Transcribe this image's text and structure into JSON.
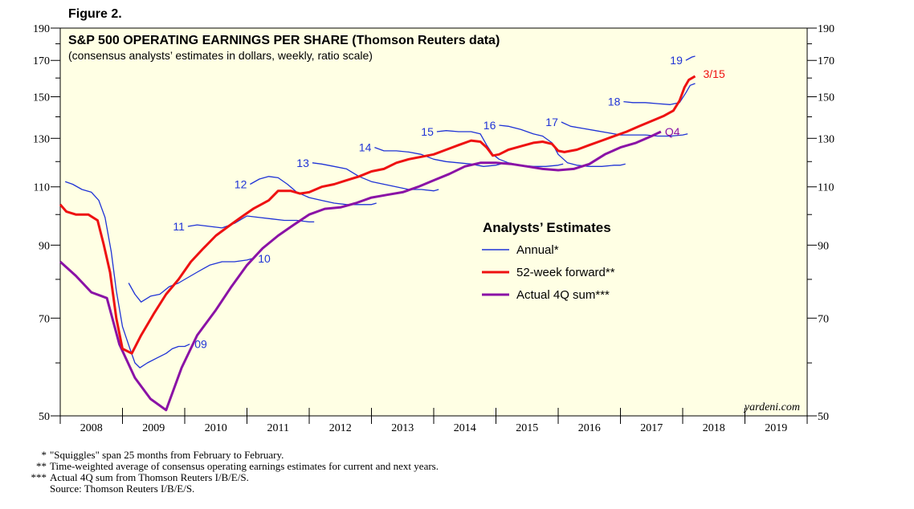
{
  "figure_label": "Figure 2.",
  "watermark": "yardeni.com",
  "colors": {
    "plot_bg": "#ffffe4",
    "annual": "#1f33d6",
    "forward": "#ee1111",
    "actual": "#8a12a6",
    "axis": "#000000"
  },
  "footnotes": [
    {
      "mark": "*",
      "text": "\"Squiggles\" span 25 months from February to February."
    },
    {
      "mark": "**",
      "text": "Time-weighted average of consensus operating earnings estimates for current and next years."
    },
    {
      "mark": "***",
      "text": "Actual 4Q sum from Thomson Reuters I/B/E/S."
    },
    {
      "mark": "",
      "text": "Source: Thomson Reuters I/B/E/S."
    }
  ],
  "chart_data": {
    "type": "line",
    "title": "S&P 500 OPERATING EARNINGS PER SHARE (Thomson Reuters data)",
    "subtitle": "(consensus analysts’ estimates in dollars, weekly, ratio scale)",
    "xlabel": "",
    "ylabel": "",
    "y_scale": "log",
    "ylim": [
      50,
      190
    ],
    "xlim": [
      2008.0,
      2020.0
    ],
    "y_ticks_labeled": [
      50,
      70,
      90,
      110,
      130,
      150,
      170,
      190
    ],
    "x_year_labels": [
      "2008",
      "2009",
      "2010",
      "2011",
      "2012",
      "2013",
      "2014",
      "2015",
      "2016",
      "2017",
      "2018",
      "2019"
    ],
    "legend": {
      "title": "Analysts’ Estimates",
      "position": "middle-right",
      "entries": [
        "Annual*",
        "52-week forward**",
        "Actual 4Q sum***"
      ]
    },
    "annotations": {
      "forward_end_label": "3/15",
      "actual_end_label": "Q4"
    },
    "series": [
      {
        "name": "52-week forward",
        "color_key": "forward",
        "points": [
          [
            2008.0,
            103.5
          ],
          [
            2008.1,
            101
          ],
          [
            2008.25,
            100
          ],
          [
            2008.45,
            100
          ],
          [
            2008.6,
            98
          ],
          [
            2008.7,
            90
          ],
          [
            2008.8,
            82
          ],
          [
            2008.9,
            70
          ],
          [
            2009.0,
            63
          ],
          [
            2009.15,
            62
          ],
          [
            2009.3,
            66
          ],
          [
            2009.5,
            71
          ],
          [
            2009.7,
            76
          ],
          [
            2009.9,
            80
          ],
          [
            2010.1,
            85
          ],
          [
            2010.3,
            89
          ],
          [
            2010.5,
            93
          ],
          [
            2010.7,
            96
          ],
          [
            2010.9,
            99
          ],
          [
            2011.1,
            102
          ],
          [
            2011.35,
            105
          ],
          [
            2011.5,
            108.5
          ],
          [
            2011.7,
            108.5
          ],
          [
            2011.85,
            107.5
          ],
          [
            2012.0,
            108
          ],
          [
            2012.2,
            110
          ],
          [
            2012.4,
            111
          ],
          [
            2012.6,
            112.5
          ],
          [
            2012.8,
            114
          ],
          [
            2013.0,
            116
          ],
          [
            2013.2,
            117
          ],
          [
            2013.4,
            119.5
          ],
          [
            2013.6,
            121
          ],
          [
            2013.8,
            122
          ],
          [
            2014.0,
            123
          ],
          [
            2014.2,
            125
          ],
          [
            2014.4,
            127
          ],
          [
            2014.6,
            129
          ],
          [
            2014.75,
            128.5
          ],
          [
            2014.85,
            126
          ],
          [
            2014.95,
            122.5
          ],
          [
            2015.05,
            123
          ],
          [
            2015.2,
            125
          ],
          [
            2015.4,
            126.5
          ],
          [
            2015.6,
            128
          ],
          [
            2015.75,
            128.5
          ],
          [
            2015.9,
            127.5
          ],
          [
            2016.0,
            124.5
          ],
          [
            2016.1,
            124
          ],
          [
            2016.3,
            125
          ],
          [
            2016.5,
            127
          ],
          [
            2016.7,
            129
          ],
          [
            2016.9,
            131
          ],
          [
            2017.1,
            133
          ],
          [
            2017.3,
            135.5
          ],
          [
            2017.5,
            138
          ],
          [
            2017.7,
            140.5
          ],
          [
            2017.85,
            143
          ],
          [
            2017.95,
            148
          ],
          [
            2018.03,
            155
          ],
          [
            2018.1,
            159
          ],
          [
            2018.2,
            161
          ]
        ]
      },
      {
        "name": "Actual 4Q sum",
        "color_key": "actual",
        "points": [
          [
            2008.0,
            85
          ],
          [
            2008.25,
            81
          ],
          [
            2008.5,
            76.5
          ],
          [
            2008.75,
            75
          ],
          [
            2008.95,
            64
          ],
          [
            2009.2,
            57
          ],
          [
            2009.45,
            53
          ],
          [
            2009.7,
            51
          ],
          [
            2009.95,
            59
          ],
          [
            2010.2,
            66
          ],
          [
            2010.5,
            72
          ],
          [
            2010.75,
            78
          ],
          [
            2011.0,
            84
          ],
          [
            2011.25,
            89
          ],
          [
            2011.5,
            93
          ],
          [
            2011.75,
            96.5
          ],
          [
            2012.0,
            100
          ],
          [
            2012.25,
            102
          ],
          [
            2012.5,
            102.5
          ],
          [
            2012.75,
            104
          ],
          [
            2013.0,
            106
          ],
          [
            2013.25,
            107
          ],
          [
            2013.5,
            108
          ],
          [
            2013.75,
            110
          ],
          [
            2014.0,
            112.5
          ],
          [
            2014.25,
            115
          ],
          [
            2014.5,
            118
          ],
          [
            2014.75,
            119.5
          ],
          [
            2015.0,
            119.5
          ],
          [
            2015.25,
            119
          ],
          [
            2015.5,
            118
          ],
          [
            2015.75,
            117
          ],
          [
            2016.0,
            116.5
          ],
          [
            2016.25,
            117
          ],
          [
            2016.5,
            119
          ],
          [
            2016.75,
            123
          ],
          [
            2017.0,
            126
          ],
          [
            2017.25,
            128
          ],
          [
            2017.5,
            131
          ],
          [
            2017.65,
            133
          ]
        ]
      }
    ],
    "annual_series": [
      {
        "label": "09",
        "color_key": "annual",
        "points": [
          [
            2008.08,
            112
          ],
          [
            2008.2,
            111
          ],
          [
            2008.35,
            109
          ],
          [
            2008.5,
            108
          ],
          [
            2008.62,
            105
          ],
          [
            2008.72,
            99
          ],
          [
            2008.82,
            88
          ],
          [
            2008.9,
            77
          ],
          [
            2009.0,
            68
          ],
          [
            2009.12,
            63
          ],
          [
            2009.2,
            60
          ],
          [
            2009.28,
            59
          ],
          [
            2009.4,
            60
          ],
          [
            2009.55,
            61
          ],
          [
            2009.7,
            62
          ],
          [
            2009.8,
            63
          ],
          [
            2009.9,
            63.5
          ],
          [
            2010.0,
            63.5
          ],
          [
            2010.08,
            64
          ]
        ]
      },
      {
        "label": "10",
        "color_key": "annual",
        "points": [
          [
            2009.1,
            79
          ],
          [
            2009.2,
            76
          ],
          [
            2009.3,
            74
          ],
          [
            2009.45,
            75.5
          ],
          [
            2009.6,
            76
          ],
          [
            2009.75,
            78
          ],
          [
            2009.9,
            79
          ],
          [
            2010.0,
            80
          ],
          [
            2010.2,
            82
          ],
          [
            2010.4,
            84
          ],
          [
            2010.6,
            85
          ],
          [
            2010.8,
            85
          ],
          [
            2011.0,
            85.5
          ],
          [
            2011.1,
            86
          ]
        ]
      },
      {
        "label": "11",
        "color_key": "annual",
        "points": [
          [
            2010.05,
            96
          ],
          [
            2010.2,
            96.5
          ],
          [
            2010.4,
            96
          ],
          [
            2010.6,
            95.5
          ],
          [
            2010.8,
            97
          ],
          [
            2011.0,
            99.5
          ],
          [
            2011.2,
            99
          ],
          [
            2011.4,
            98.5
          ],
          [
            2011.6,
            98
          ],
          [
            2011.8,
            98
          ],
          [
            2012.0,
            97.5
          ],
          [
            2012.08,
            97.5
          ]
        ]
      },
      {
        "label": "12",
        "color_key": "annual",
        "points": [
          [
            2011.05,
            111
          ],
          [
            2011.2,
            113
          ],
          [
            2011.35,
            114
          ],
          [
            2011.5,
            113.5
          ],
          [
            2011.65,
            111
          ],
          [
            2011.8,
            108
          ],
          [
            2012.0,
            106
          ],
          [
            2012.2,
            105
          ],
          [
            2012.4,
            104
          ],
          [
            2012.6,
            103.5
          ],
          [
            2012.8,
            103.5
          ],
          [
            2013.0,
            103.5
          ],
          [
            2013.08,
            104
          ]
        ]
      },
      {
        "label": "13",
        "color_key": "annual",
        "points": [
          [
            2012.05,
            119.5
          ],
          [
            2012.2,
            119
          ],
          [
            2012.4,
            118
          ],
          [
            2012.6,
            117
          ],
          [
            2012.8,
            114
          ],
          [
            2013.0,
            112
          ],
          [
            2013.2,
            111
          ],
          [
            2013.4,
            110
          ],
          [
            2013.6,
            109
          ],
          [
            2013.8,
            109
          ],
          [
            2014.0,
            108.5
          ],
          [
            2014.08,
            109
          ]
        ]
      },
      {
        "label": "14",
        "color_key": "annual",
        "points": [
          [
            2013.05,
            126
          ],
          [
            2013.2,
            124.5
          ],
          [
            2013.4,
            124.5
          ],
          [
            2013.6,
            124
          ],
          [
            2013.8,
            123
          ],
          [
            2014.0,
            121
          ],
          [
            2014.2,
            120
          ],
          [
            2014.4,
            119.5
          ],
          [
            2014.6,
            119
          ],
          [
            2014.8,
            118
          ],
          [
            2015.0,
            118.5
          ],
          [
            2015.08,
            119
          ]
        ]
      },
      {
        "label": "15",
        "color_key": "annual",
        "points": [
          [
            2014.05,
            133
          ],
          [
            2014.2,
            133.5
          ],
          [
            2014.4,
            133
          ],
          [
            2014.6,
            133
          ],
          [
            2014.75,
            132
          ],
          [
            2014.85,
            127
          ],
          [
            2014.95,
            123
          ],
          [
            2015.05,
            121
          ],
          [
            2015.2,
            119.5
          ],
          [
            2015.4,
            118.5
          ],
          [
            2015.6,
            118
          ],
          [
            2015.8,
            118
          ],
          [
            2016.0,
            118.5
          ],
          [
            2016.08,
            119
          ]
        ]
      },
      {
        "label": "16",
        "color_key": "annual",
        "points": [
          [
            2015.05,
            136
          ],
          [
            2015.2,
            135.5
          ],
          [
            2015.4,
            134
          ],
          [
            2015.6,
            132
          ],
          [
            2015.75,
            131
          ],
          [
            2015.9,
            128
          ],
          [
            2016.0,
            123
          ],
          [
            2016.15,
            119.5
          ],
          [
            2016.3,
            118.5
          ],
          [
            2016.5,
            118
          ],
          [
            2016.7,
            118
          ],
          [
            2016.9,
            118.5
          ],
          [
            2017.0,
            118.5
          ],
          [
            2017.08,
            119
          ]
        ]
      },
      {
        "label": "17",
        "color_key": "annual",
        "points": [
          [
            2016.05,
            137.5
          ],
          [
            2016.2,
            135.5
          ],
          [
            2016.4,
            134.5
          ],
          [
            2016.6,
            133.5
          ],
          [
            2016.8,
            132.5
          ],
          [
            2017.0,
            131.5
          ],
          [
            2017.2,
            131.5
          ],
          [
            2017.4,
            131.5
          ],
          [
            2017.6,
            131
          ],
          [
            2017.8,
            131
          ],
          [
            2018.0,
            131.5
          ],
          [
            2018.08,
            132
          ]
        ]
      },
      {
        "label": "18",
        "color_key": "annual",
        "points": [
          [
            2017.05,
            147.5
          ],
          [
            2017.2,
            147
          ],
          [
            2017.4,
            147
          ],
          [
            2017.6,
            146.5
          ],
          [
            2017.8,
            146
          ],
          [
            2017.95,
            147
          ],
          [
            2018.05,
            152
          ],
          [
            2018.12,
            156
          ],
          [
            2018.2,
            157
          ]
        ]
      },
      {
        "label": "19",
        "color_key": "annual",
        "points": [
          [
            2018.05,
            170
          ],
          [
            2018.15,
            172
          ],
          [
            2018.2,
            172.5
          ]
        ]
      }
    ]
  }
}
